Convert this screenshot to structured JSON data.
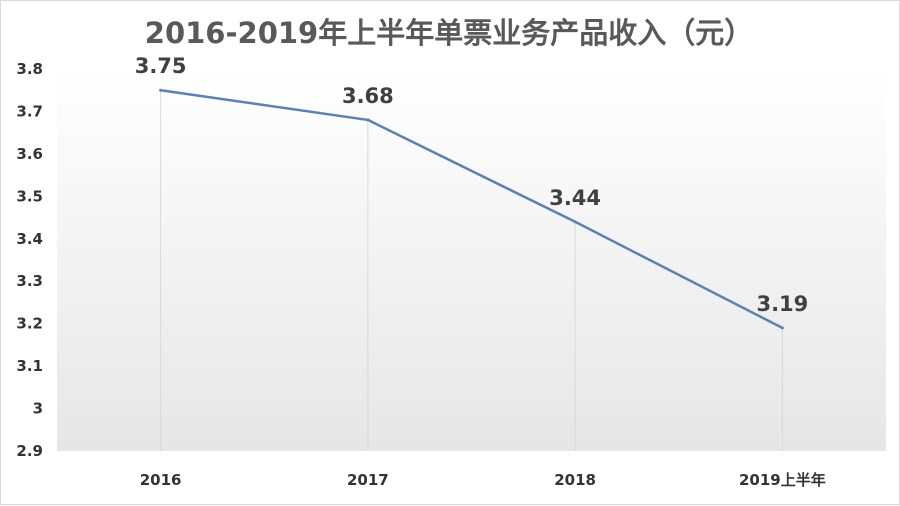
{
  "chart_data": {
    "type": "line",
    "title": "2016-2019年上半年单票业务产品收入（元）",
    "categories": [
      "2016",
      "2017",
      "2018",
      "2019上半年"
    ],
    "series": [
      {
        "values": [
          3.75,
          3.68,
          3.44,
          3.19
        ]
      }
    ],
    "y_ticks": [
      "2.9",
      "3",
      "3.1",
      "3.2",
      "3.3",
      "3.4",
      "3.5",
      "3.6",
      "3.7",
      "3.8"
    ],
    "data_labels": [
      "3.75",
      "3.68",
      "3.44",
      "3.19"
    ],
    "ylim": [
      2.9,
      3.8
    ],
    "grid": "vertical lines from data points",
    "legend": "none",
    "colors": {
      "line": "#5b80b2",
      "plot_bg_top": "#ffffff",
      "plot_bg_bottom": "#e6e6e6",
      "drop_line": "#d9d9d9"
    }
  }
}
